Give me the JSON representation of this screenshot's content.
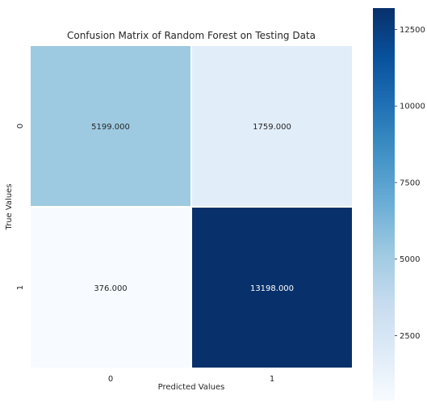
{
  "chart_data": {
    "type": "heatmap",
    "title": "Confusion Matrix of Random Forest on Testing Data",
    "xlabel": "Predicted Values",
    "ylabel": "True Values",
    "x_categories": [
      "0",
      "1"
    ],
    "y_categories": [
      "0",
      "1"
    ],
    "values": [
      [
        5199,
        1759
      ],
      [
        376,
        13198
      ]
    ],
    "cell_labels": [
      [
        "5199.000",
        "1759.000"
      ],
      [
        "376.000",
        "13198.000"
      ]
    ],
    "colormap": "Blues",
    "color_range": [
      376,
      13198
    ],
    "colorbar_ticks": [
      2500,
      5000,
      7500,
      10000,
      12500
    ],
    "colorbar_tick_labels": [
      "2500",
      "5000",
      "7500",
      "10000",
      "12500"
    ],
    "grid": false
  }
}
